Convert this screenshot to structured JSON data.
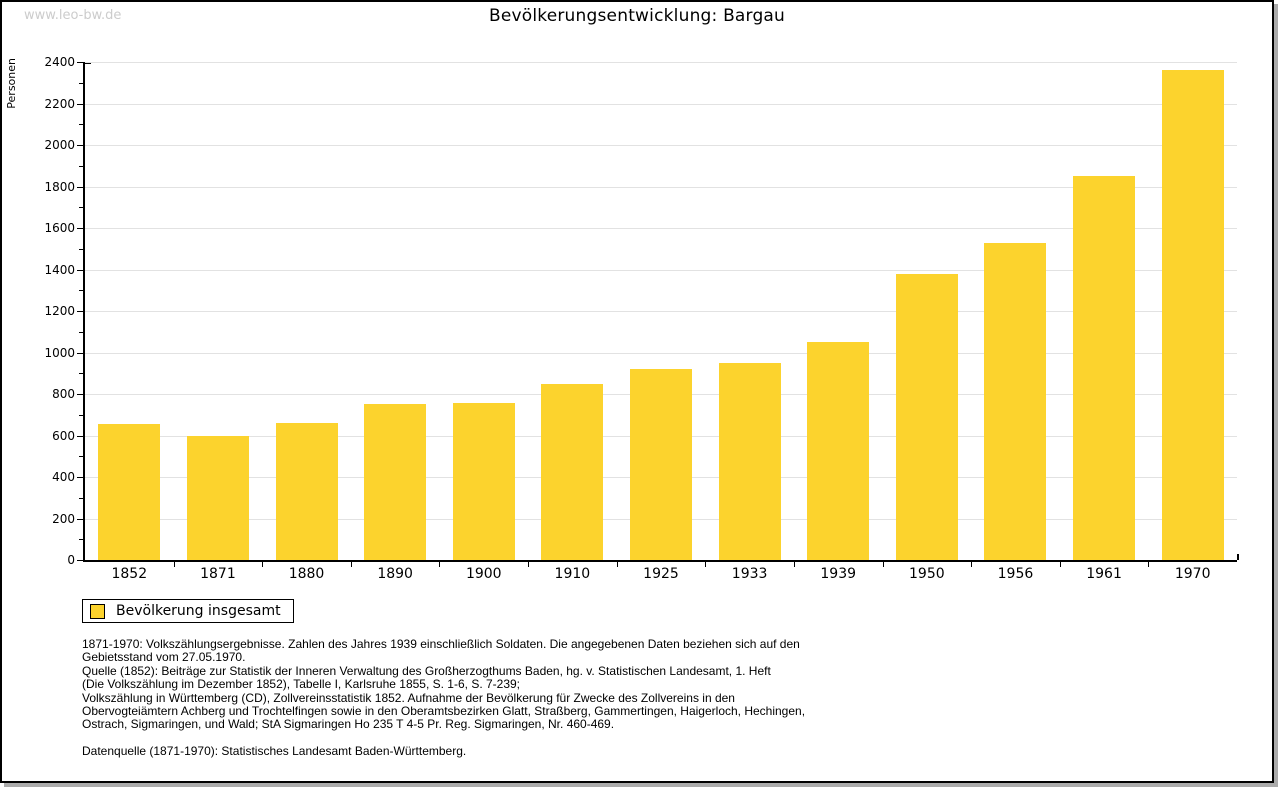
{
  "watermark": "www.leo-bw.de",
  "chart_data": {
    "type": "bar",
    "title": "Bevölkerungsentwicklung: Bargau",
    "xlabel": "",
    "ylabel": "Personen",
    "categories": [
      "1852",
      "1871",
      "1880",
      "1890",
      "1900",
      "1910",
      "1925",
      "1933",
      "1939",
      "1950",
      "1956",
      "1961",
      "1970"
    ],
    "series": [
      {
        "name": "Bevölkerung insgesamt",
        "values": [
          655,
          600,
          660,
          750,
          755,
          850,
          920,
          950,
          1050,
          1380,
          1530,
          1850,
          2360
        ]
      }
    ],
    "ylim": [
      0,
      2400
    ],
    "ytick_step": 200,
    "yminor_step": 100,
    "grid": "horizontal",
    "legend_position": "bottom-left",
    "bar_color": "#fcd32d"
  },
  "legend": {
    "label": "Bevölkerung insgesamt",
    "swatch_color": "#fcd32d"
  },
  "footnotes": {
    "lines": [
      "1871-1970: Volkszählungsergebnisse. Zahlen des Jahres 1939 einschließlich Soldaten. Die angegebenen Daten beziehen sich auf den",
      "Gebietsstand vom 27.05.1970.",
      "Quelle (1852): Beiträge zur Statistik der Inneren Verwaltung des Großherzogthums Baden, hg. v. Statistischen Landesamt, 1. Heft",
      "(Die Volkszählung im Dezember 1852), Tabelle I, Karlsruhe 1855, S. 1-6, S. 7-239;",
      "Volkszählung in Württemberg (CD), Zollvereinsstatistik 1852. Aufnahme der Bevölkerung für Zwecke des Zollvereins in den",
      "Obervogteiämtern Achberg und Trochtelfingen sowie in den Oberamtsbezirken Glatt, Straßberg, Gammertingen, Haigerloch, Hechingen,",
      "Ostrach, Sigmaringen, und Wald; StA Sigmaringen Ho 235 T 4-5 Pr. Reg. Sigmaringen, Nr. 460-469."
    ],
    "datasource": "Datenquelle (1871-1970): Statistisches Landesamt Baden-Württemberg."
  },
  "colors": {
    "bar": "#fcd32d",
    "grid": "#e2e2e2",
    "axis": "#000000",
    "watermark": "#cccccc",
    "frame_shadow": "#ababab"
  }
}
